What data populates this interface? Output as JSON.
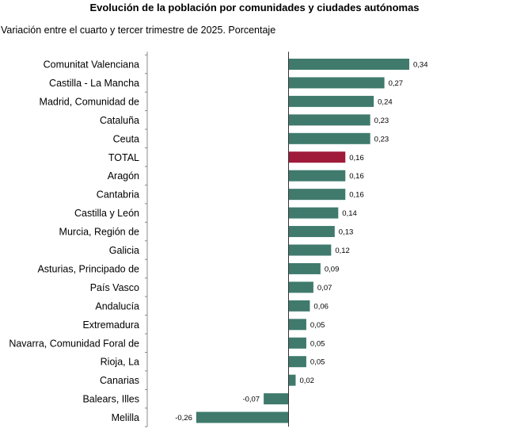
{
  "chart_data": {
    "type": "bar",
    "orientation": "horizontal",
    "title": "Evolución de la población por comunidades y ciudades autónomas",
    "subtitle": "Variación entre el cuarto y tercer trimestre de 2025. Porcentaje",
    "xlim": [
      -0.26,
      0.34
    ],
    "grid": false,
    "colors": {
      "default": "#3f7a6d",
      "highlight": "#a01a3a"
    },
    "highlight_category": "TOTAL",
    "categories": [
      "Comunitat Valenciana",
      "Castilla - La Mancha",
      "Madrid, Comunidad de",
      "Cataluña",
      "Ceuta",
      "TOTAL",
      "Aragón",
      "Cantabria",
      "Castilla y León",
      "Murcia, Región de",
      "Galicia",
      "Asturias, Principado de",
      "País Vasco",
      "Andalucía",
      "Extremadura",
      "Navarra, Comunidad Foral de",
      "Rioja, La",
      "Canarias",
      "Balears, Illes",
      "Melilla"
    ],
    "values": [
      0.34,
      0.27,
      0.24,
      0.23,
      0.23,
      0.16,
      0.16,
      0.16,
      0.14,
      0.13,
      0.12,
      0.09,
      0.07,
      0.06,
      0.05,
      0.05,
      0.05,
      0.02,
      -0.07,
      -0.26
    ],
    "value_labels": [
      "0,34",
      "0,27",
      "0,24",
      "0,23",
      "0,23",
      "0,16",
      "0,16",
      "0,16",
      "0,14",
      "0,13",
      "0,12",
      "0,09",
      "0,07",
      "0,06",
      "0,05",
      "0,05",
      "0,05",
      "0,02",
      "-0,07",
      "-0,26"
    ]
  }
}
